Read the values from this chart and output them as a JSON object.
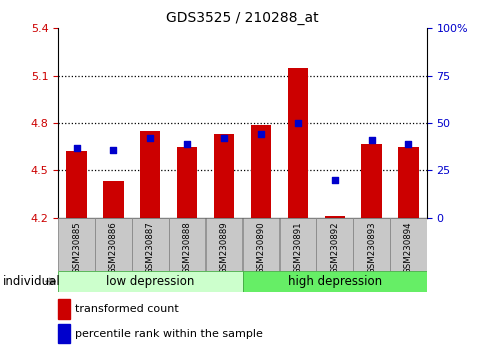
{
  "title": "GDS3525 / 210288_at",
  "samples": [
    "GSM230885",
    "GSM230886",
    "GSM230887",
    "GSM230888",
    "GSM230889",
    "GSM230890",
    "GSM230891",
    "GSM230892",
    "GSM230893",
    "GSM230894"
  ],
  "bar_values": [
    4.62,
    4.43,
    4.75,
    4.65,
    4.73,
    4.79,
    5.15,
    4.21,
    4.67,
    4.65
  ],
  "dot_values": [
    37,
    36,
    42,
    39,
    42,
    44,
    50,
    20,
    41,
    39
  ],
  "ylim_left": [
    4.2,
    5.4
  ],
  "ylim_right": [
    0,
    100
  ],
  "yticks_left": [
    4.2,
    4.5,
    4.8,
    5.1,
    5.4
  ],
  "yticks_right": [
    0,
    25,
    50,
    75,
    100
  ],
  "ytick_labels_right": [
    "0",
    "25",
    "50",
    "75",
    "100%"
  ],
  "bar_color": "#cc0000",
  "dot_color": "#0000cc",
  "grid_lines": [
    4.5,
    4.8,
    5.1
  ],
  "group1_label": "low depression",
  "group2_label": "high depression",
  "group1_color": "#ccffcc",
  "group2_color": "#66ee66",
  "xlabel_left": "individual",
  "legend_red": "transformed count",
  "legend_blue": "percentile rank within the sample",
  "tick_color_left": "#cc0000",
  "tick_color_right": "#0000cc",
  "bar_bottom": 4.2,
  "label_bg": "#c8c8c8"
}
